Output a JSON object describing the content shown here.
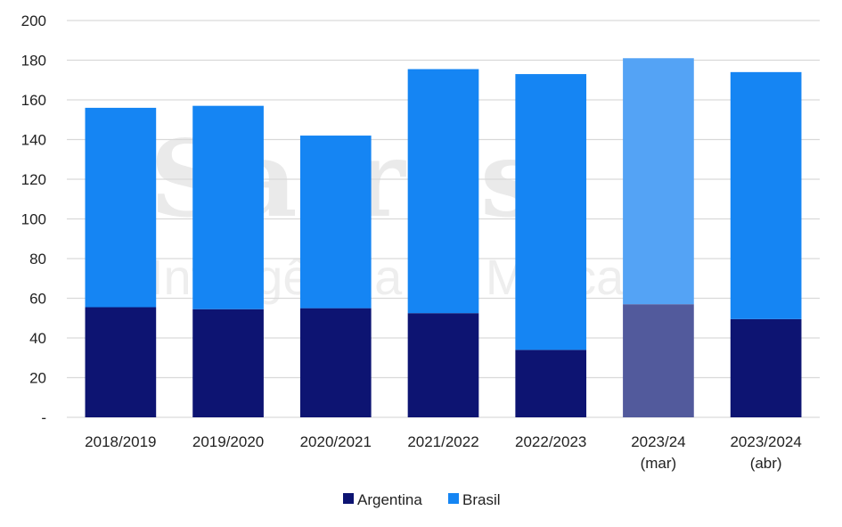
{
  "chart_data": {
    "type": "bar",
    "stacked": true,
    "categories": [
      [
        "2018/2019"
      ],
      [
        "2019/2020"
      ],
      [
        "2020/2021"
      ],
      [
        "2021/2022"
      ],
      [
        "2022/2023"
      ],
      [
        "2023/24",
        "(mar)"
      ],
      [
        "2023/2024",
        "(abr)"
      ]
    ],
    "series": [
      {
        "name": "Argentina",
        "color": "#0d1472",
        "faded_color": "#525a9c",
        "values": [
          55.5,
          54.5,
          55,
          52.5,
          34,
          57,
          49.5
        ]
      },
      {
        "name": "Brasil",
        "color": "#1585f3",
        "faded_color": "#54a3f5",
        "values": [
          100.5,
          102.5,
          87,
          123,
          139,
          124,
          124.5
        ]
      }
    ],
    "faded_category_index": 5,
    "ylim": [
      0,
      200
    ],
    "yticks": [
      {
        "value": 0,
        "label": "-"
      },
      {
        "value": 20,
        "label": "20"
      },
      {
        "value": 40,
        "label": "40"
      },
      {
        "value": 60,
        "label": "60"
      },
      {
        "value": 80,
        "label": "80"
      },
      {
        "value": 100,
        "label": "100"
      },
      {
        "value": 120,
        "label": "120"
      },
      {
        "value": 140,
        "label": "140"
      },
      {
        "value": 160,
        "label": "160"
      },
      {
        "value": 180,
        "label": "180"
      },
      {
        "value": 200,
        "label": "200"
      }
    ],
    "grid": true,
    "legend_position": "bottom-center",
    "gridline_color": "#d9d9d9"
  },
  "watermark": {
    "logo": "Safras",
    "tagline": "Inteligência de Mercado"
  }
}
